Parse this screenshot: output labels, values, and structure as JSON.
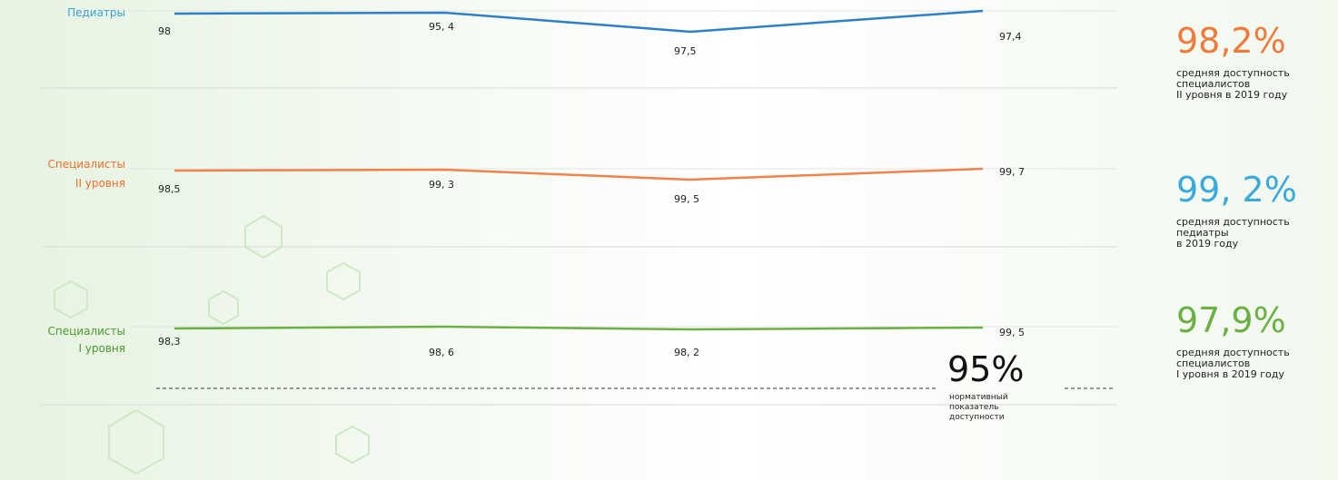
{
  "rows": [
    {
      "label": [
        "Педиатры"
      ],
      "values": [
        "98",
        "95, 4",
        "97,5",
        "97,4"
      ]
    },
    {
      "label": [
        "Специалисты",
        "II уровня"
      ],
      "values": [
        "98,5",
        "99, 3",
        "99, 5",
        "99, 7"
      ]
    },
    {
      "label": [
        "Специалисты",
        "I уровня"
      ],
      "values": [
        "98,3",
        "98, 6",
        "98, 2",
        "99, 5"
      ]
    }
  ],
  "stats": [
    {
      "value": "98,2%",
      "lines": [
        "средняя доступность",
        "специалистов",
        "II уровня в 2019 году"
      ]
    },
    {
      "value": "99, 2%",
      "lines": [
        "средняя доступность",
        "педиатры",
        "в 2019 году"
      ]
    },
    {
      "value": "97,9%",
      "lines": [
        "средняя доступность",
        "специалистов",
        "I уровня в 2019 году"
      ]
    }
  ],
  "norm": {
    "value": "95%",
    "lines": [
      "нормативный",
      "показатель",
      "доступности"
    ]
  }
}
